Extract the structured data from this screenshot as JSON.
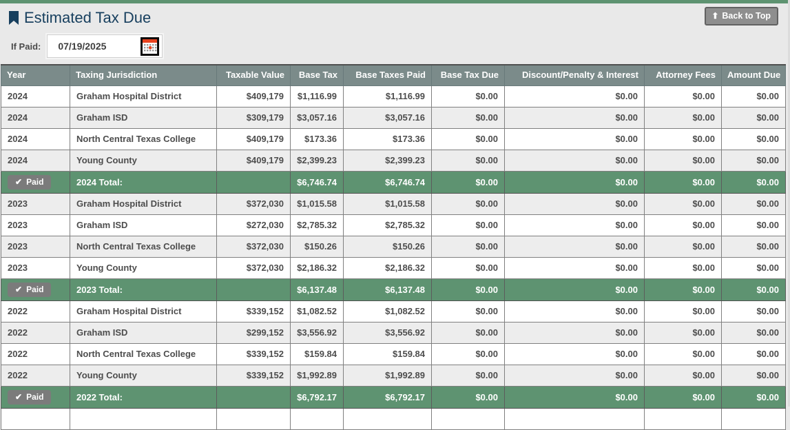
{
  "page": {
    "title": "Estimated Tax Due",
    "back_to_top_label": "Back to Top",
    "if_paid_label": "If Paid:",
    "if_paid_value": "07/19/2025",
    "accent_green": "#5e9371",
    "header_gray": "#7b8b8a",
    "title_color": "#173f5e"
  },
  "table": {
    "columns": [
      "Year",
      "Taxing Jurisdiction",
      "Taxable Value",
      "Base Tax",
      "Base Taxes Paid",
      "Base Tax Due",
      "Discount/Penalty & Interest",
      "Attorney Fees",
      "Amount Due"
    ],
    "rows": [
      {
        "type": "data",
        "cells": [
          "2024",
          "Graham Hospital District",
          "$409,179",
          "$1,116.99",
          "$1,116.99",
          "$0.00",
          "$0.00",
          "$0.00",
          "$0.00"
        ]
      },
      {
        "type": "data",
        "cells": [
          "2024",
          "Graham ISD",
          "$309,179",
          "$3,057.16",
          "$3,057.16",
          "$0.00",
          "$0.00",
          "$0.00",
          "$0.00"
        ]
      },
      {
        "type": "data",
        "cells": [
          "2024",
          "North Central Texas College",
          "$409,179",
          "$173.36",
          "$173.36",
          "$0.00",
          "$0.00",
          "$0.00",
          "$0.00"
        ]
      },
      {
        "type": "data",
        "cells": [
          "2024",
          "Young County",
          "$409,179",
          "$2,399.23",
          "$2,399.23",
          "$0.00",
          "$0.00",
          "$0.00",
          "$0.00"
        ]
      },
      {
        "type": "total",
        "badge": "Paid",
        "cells": [
          "",
          "2024 Total:",
          "",
          "$6,746.74",
          "$6,746.74",
          "$0.00",
          "$0.00",
          "$0.00",
          "$0.00"
        ]
      },
      {
        "type": "data",
        "cells": [
          "2023",
          "Graham Hospital District",
          "$372,030",
          "$1,015.58",
          "$1,015.58",
          "$0.00",
          "$0.00",
          "$0.00",
          "$0.00"
        ]
      },
      {
        "type": "data",
        "cells": [
          "2023",
          "Graham ISD",
          "$272,030",
          "$2,785.32",
          "$2,785.32",
          "$0.00",
          "$0.00",
          "$0.00",
          "$0.00"
        ]
      },
      {
        "type": "data",
        "cells": [
          "2023",
          "North Central Texas College",
          "$372,030",
          "$150.26",
          "$150.26",
          "$0.00",
          "$0.00",
          "$0.00",
          "$0.00"
        ]
      },
      {
        "type": "data",
        "cells": [
          "2023",
          "Young County",
          "$372,030",
          "$2,186.32",
          "$2,186.32",
          "$0.00",
          "$0.00",
          "$0.00",
          "$0.00"
        ]
      },
      {
        "type": "total",
        "badge": "Paid",
        "cells": [
          "",
          "2023 Total:",
          "",
          "$6,137.48",
          "$6,137.48",
          "$0.00",
          "$0.00",
          "$0.00",
          "$0.00"
        ]
      },
      {
        "type": "data",
        "cells": [
          "2022",
          "Graham Hospital District",
          "$339,152",
          "$1,082.52",
          "$1,082.52",
          "$0.00",
          "$0.00",
          "$0.00",
          "$0.00"
        ]
      },
      {
        "type": "data",
        "cells": [
          "2022",
          "Graham ISD",
          "$299,152",
          "$3,556.92",
          "$3,556.92",
          "$0.00",
          "$0.00",
          "$0.00",
          "$0.00"
        ]
      },
      {
        "type": "data",
        "cells": [
          "2022",
          "North Central Texas College",
          "$339,152",
          "$159.84",
          "$159.84",
          "$0.00",
          "$0.00",
          "$0.00",
          "$0.00"
        ]
      },
      {
        "type": "data",
        "cells": [
          "2022",
          "Young County",
          "$339,152",
          "$1,992.89",
          "$1,992.89",
          "$0.00",
          "$0.00",
          "$0.00",
          "$0.00"
        ]
      },
      {
        "type": "total",
        "badge": "Paid",
        "cells": [
          "",
          "2022 Total:",
          "",
          "$6,792.17",
          "$6,792.17",
          "$0.00",
          "$0.00",
          "$0.00",
          "$0.00"
        ]
      },
      {
        "type": "partial",
        "cells": [
          "",
          "",
          "",
          "",
          "",
          "",
          "",
          "",
          ""
        ]
      }
    ]
  }
}
